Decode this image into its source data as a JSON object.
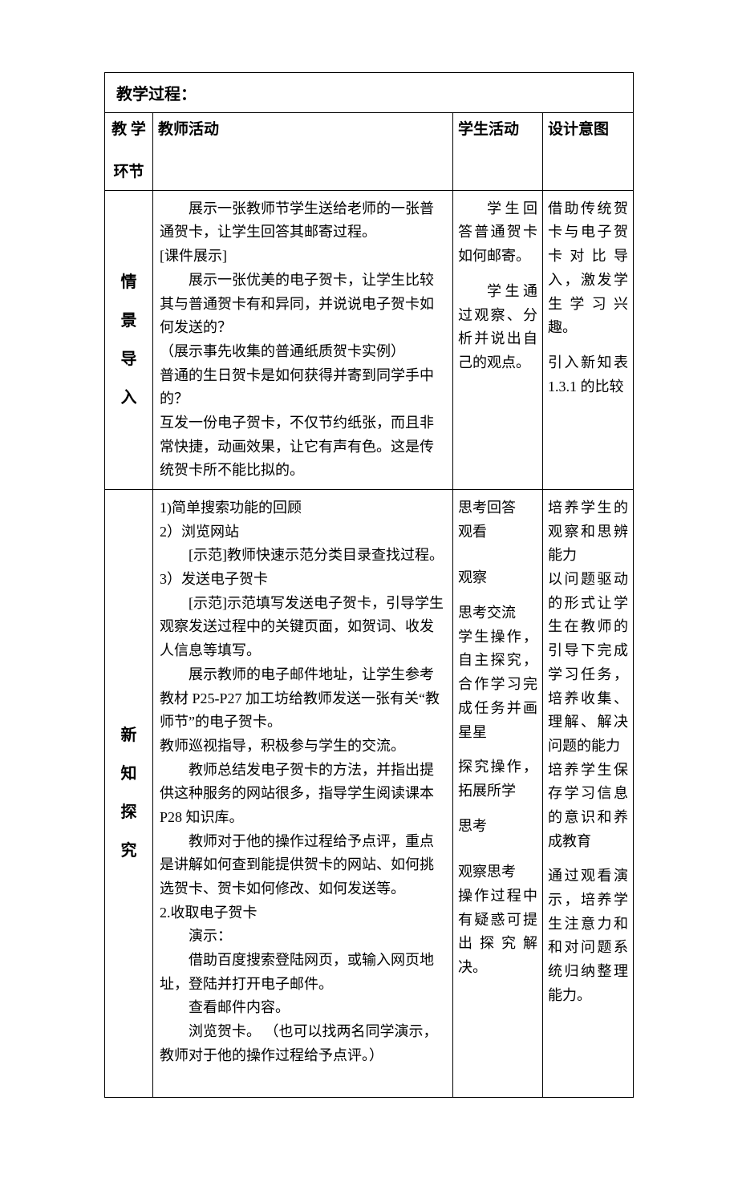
{
  "title": "教学过程：",
  "headers": {
    "col1_line1": "教 学",
    "col1_line2": "环节",
    "col2": "教师活动",
    "col3": "学生活动",
    "col4": "设计意图"
  },
  "row1": {
    "stage": [
      "情",
      "景",
      "导",
      "入"
    ],
    "teacher": {
      "p1": "展示一张教师节学生送给老师的一张普通贺卡，让学生回答其邮寄过程。",
      "p2": "[课件展示]",
      "p3": "展示一张优美的电子贺卡，让学生比较其与普通贺卡有和异同，并说说电子贺卡如何发送的？",
      "p4": "（展示事先收集的普通纸质贺卡实例）",
      "p5": "普通的生日贺卡是如何获得并寄到同学手中的？",
      "p6": "互发一份电子贺卡，不仅节约纸张，而且非常快捷，动画效果，让它有声有色。这是传统贺卡所不能比拟的。"
    },
    "student": {
      "p1": "学生回答普通贺卡如何邮寄。",
      "p2": "学生通过观察、分析并说出自己的观点。"
    },
    "design": {
      "p1": "借助传统贺卡与电子贺卡对比导入，激发学生学习兴趣。",
      "p2": "引入新知表1.3.1 的比较"
    }
  },
  "row2": {
    "stage": [
      "新",
      "知",
      "探",
      "究"
    ],
    "teacher": {
      "p1": "1)简单搜索功能的回顾",
      "p2": "2）浏览网站",
      "p3": "[示范]教师快速示范分类目录查找过程。",
      "p4": "3）发送电子贺卡",
      "p5": "[示范]示范填写发送电子贺卡，引导学生观察发送过程中的关键页面，如贺词、收发人信息等填写。",
      "p6": "展示教师的电子邮件地址，让学生参考教材 P25-P27 加工坊给教师发送一张有关“教师节”的电子贺卡。",
      "p7": "教师巡视指导，积极参与学生的交流。",
      "p8": "教师总结发电子贺卡的方法，并指出提供这种服务的网站很多，指导学生阅读课本P28 知识库。",
      "p9": "教师对于他的操作过程给予点评，重点是讲解如何查到能提供贺卡的网站、如何挑选贺卡、贺卡如何修改、如何发送等。",
      "p10": "2.收取电子贺卡",
      "p11": "演示：",
      "p12": "借助百度搜索登陆网页，或输入网页地址，登陆并打开电子邮件。",
      "p13": "查看邮件内容。",
      "p14": "浏览贺卡。 （也可以找两名同学演示，教师对于他的操作过程给予点评。）"
    },
    "student": {
      "p1": "思考回答",
      "p2": "观看",
      "p3": "观察",
      "p4": "思考交流",
      "p5": "学生操作，自主探究，合作学习完成任务并画星星",
      "p6": "探究操作，拓展所学",
      "p7": "思考",
      "p8": "观察思考",
      "p9": "操作过程中有疑惑可提出探究解决。"
    },
    "design": {
      "p1": "培养学生的观察和思辨能力",
      "p2": "以问题驱动的形式让学生在教师的引导下完成学习任务，培养收集、理解、解决问题的能力",
      "p3": "培养学生保存学习信息的意识和养成教育",
      "p4": "通过观看演示，培养学生注意力和和对问题系统归纳整理能力。"
    }
  }
}
